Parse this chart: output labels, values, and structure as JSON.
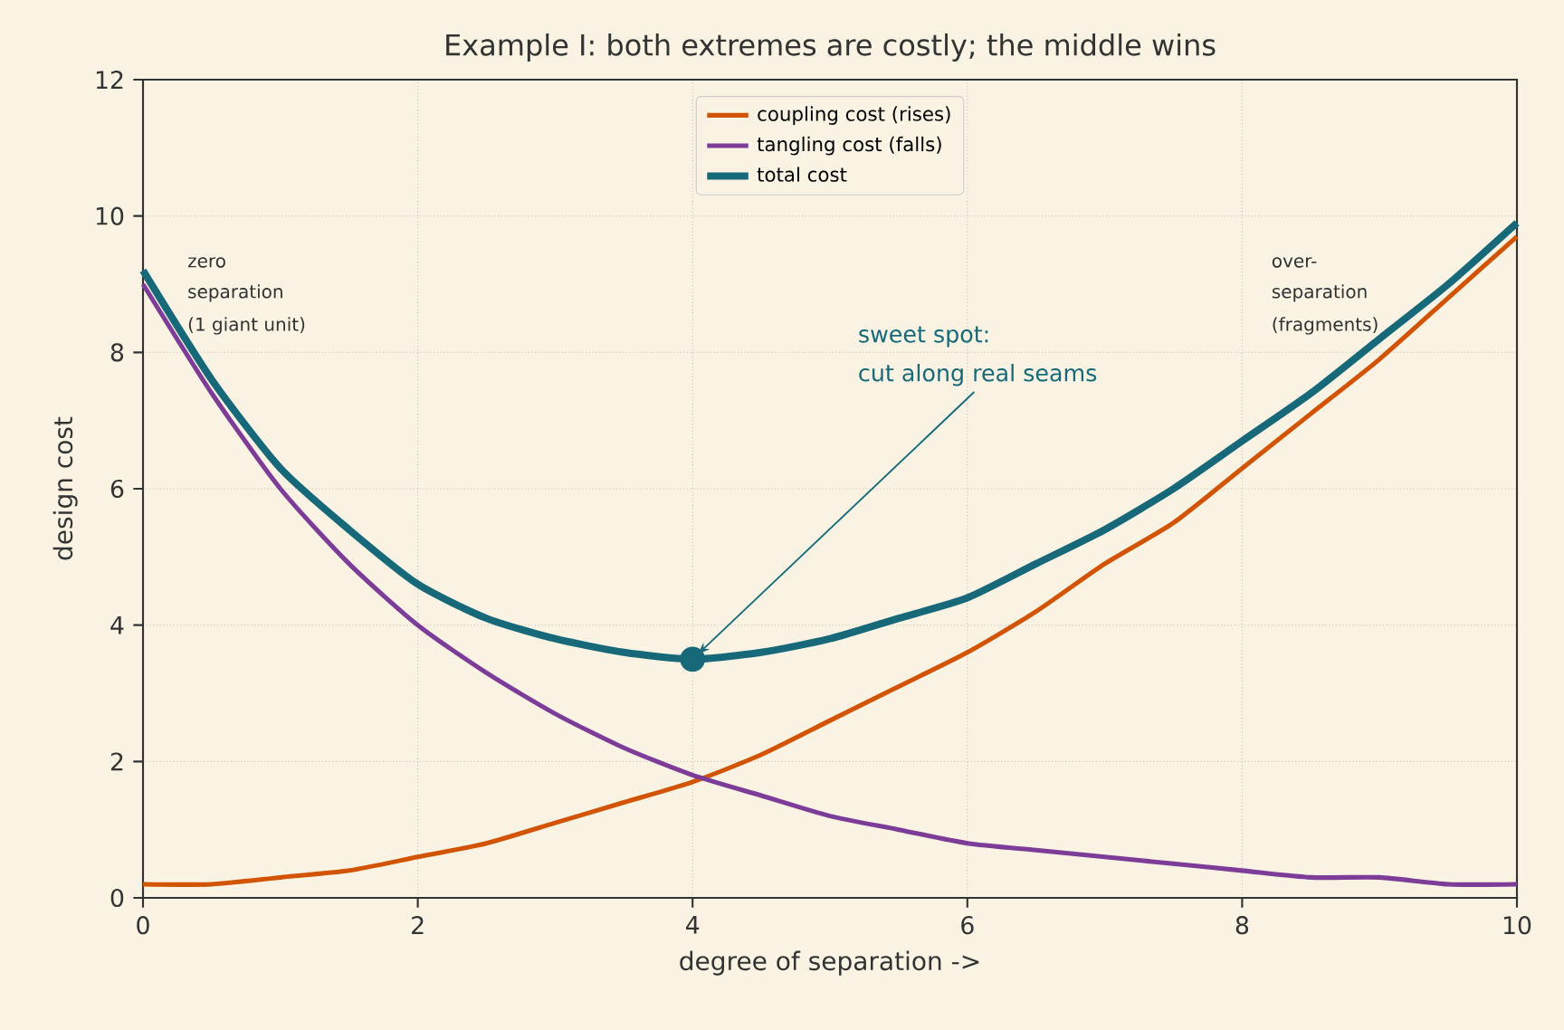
{
  "chart_data": {
    "type": "line",
    "title": "Example I: both extremes are costly; the middle wins",
    "xlabel": "degree of separation  ->",
    "ylabel": "design cost",
    "x": [
      0,
      0.5,
      1,
      1.5,
      2,
      2.5,
      3,
      3.5,
      4,
      4.5,
      5,
      5.5,
      6,
      6.5,
      7,
      7.5,
      8,
      8.5,
      9,
      9.5,
      10
    ],
    "series": [
      {
        "name": "coupling cost (rises)",
        "color": "#d35400",
        "values": [
          0.2,
          0.2,
          0.3,
          0.4,
          0.6,
          0.8,
          1.1,
          1.4,
          1.7,
          2.1,
          2.6,
          3.1,
          3.6,
          4.2,
          4.9,
          5.5,
          6.3,
          7.1,
          7.9,
          8.8,
          9.7
        ]
      },
      {
        "name": "tangling cost (falls)",
        "color": "#7d3c98",
        "values": [
          9.0,
          7.4,
          6.0,
          4.9,
          4.0,
          3.3,
          2.7,
          2.2,
          1.8,
          1.5,
          1.2,
          1.0,
          0.8,
          0.7,
          0.6,
          0.5,
          0.4,
          0.3,
          0.3,
          0.2,
          0.2
        ]
      },
      {
        "name": "total cost",
        "color": "#17697a",
        "values": [
          9.2,
          7.6,
          6.3,
          5.4,
          4.6,
          4.1,
          3.8,
          3.6,
          3.5,
          3.6,
          3.8,
          4.1,
          4.4,
          4.9,
          5.4,
          6.0,
          6.7,
          7.4,
          8.2,
          9.0,
          9.9
        ]
      },
      {
        "type": "scatter",
        "color": "#17697a",
        "x": [
          4
        ],
        "values": [
          3.5
        ]
      }
    ],
    "annotations": [
      "zero",
      "separation",
      "(1 giant unit)",
      "over-",
      "separation",
      "(fragments)",
      "sweet spot:",
      {
        "text": "cut along real seams",
        "x": 4,
        "y": 3.5
      }
    ],
    "xlim": [
      0,
      10
    ],
    "ylim": [
      0,
      12
    ],
    "xticks": [
      0,
      2,
      4,
      6,
      8,
      10
    ],
    "yticks": [
      0,
      2,
      4,
      6,
      8,
      10,
      12
    ],
    "grid": true,
    "legend": "top"
  }
}
